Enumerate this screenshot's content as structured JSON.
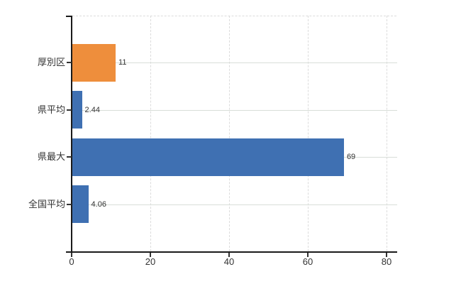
{
  "chart_data": {
    "type": "bar",
    "orientation": "horizontal",
    "categories": [
      "厚別区",
      "県平均",
      "県最大",
      "全国平均"
    ],
    "values": [
      11,
      2.44,
      69,
      4.06
    ],
    "value_labels": [
      "11",
      "2.44",
      "69",
      "4.06"
    ],
    "bar_color_names": [
      "orange",
      "blue",
      "blue",
      "blue"
    ],
    "x_ticks": {
      "labels": [
        "0",
        "20",
        "40",
        "60",
        "80"
      ],
      "values": [
        0,
        20,
        40,
        60,
        80
      ]
    },
    "xlim": [
      0,
      82.7
    ],
    "grid": {
      "horizontal": "solid",
      "vertical": "dashed",
      "top_border": "dashed"
    },
    "legend": "none",
    "colors": {
      "orange": "#EE8E3C",
      "blue": "#3F70B2",
      "grid_h": "#d8ded8",
      "grid_v": "#dcdcdc",
      "axis": "#1a1a1a",
      "tick": "#333333",
      "text": "#333333"
    }
  }
}
